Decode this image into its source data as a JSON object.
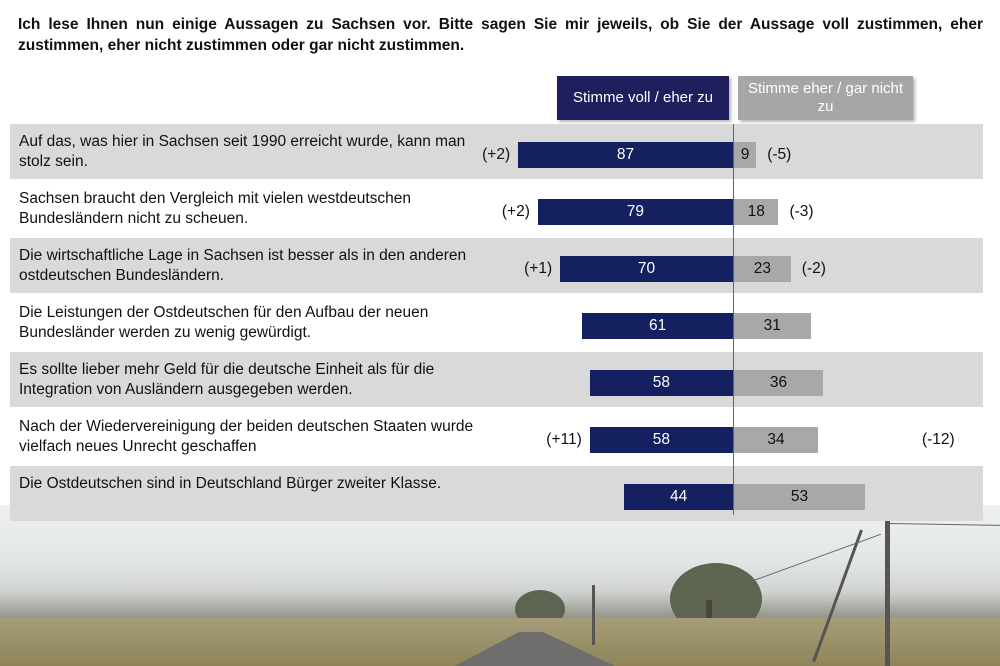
{
  "title": "Ich lese Ihnen nun einige Aussagen zu Sachsen vor. Bitte sagen Sie mir jeweils, ob Sie der Aussage voll zustimmen, eher zustimmen, eher nicht zustimmen oder gar nicht zustimmen.",
  "legend": {
    "agree": "Stimme voll / eher zu",
    "disagree": "Stimme eher / gar nicht zu"
  },
  "colors": {
    "agree": "#14205f",
    "disagree": "#a8a8a8",
    "row_alt": "#d9d9d9"
  },
  "rows": [
    {
      "statement": "Auf das, was hier in Sachsen seit 1990 erreicht wurde, kann man stolz sein.",
      "agree": "87",
      "disagree": "9",
      "agree_change": "(+2)",
      "disagree_change": "(-5)"
    },
    {
      "statement": "Sachsen braucht den Vergleich mit vielen westdeutschen Bundesländern nicht zu scheuen.",
      "agree": "79",
      "disagree": "18",
      "agree_change": "(+2)",
      "disagree_change": "(-3)"
    },
    {
      "statement": "Die wirtschaftliche Lage in Sachsen ist besser als in den anderen ostdeutschen Bundesländern.",
      "agree": "70",
      "disagree": "23",
      "agree_change": "(+1)",
      "disagree_change": "(-2)"
    },
    {
      "statement": "Die Leistungen der Ostdeutschen für den Aufbau der neuen Bundesländer werden zu wenig gewürdigt.",
      "agree": "61",
      "disagree": "31",
      "agree_change": "",
      "disagree_change": ""
    },
    {
      "statement": "Es sollte lieber mehr Geld für die deutsche Einheit als für die Integration von Ausländern ausgegeben werden.",
      "agree": "58",
      "disagree": "36",
      "agree_change": "",
      "disagree_change": ""
    },
    {
      "statement": "Nach der Wiedervereinigung der beiden deutschen Staaten wurde vielfach neues Unrecht geschaffen",
      "agree": "58",
      "disagree": "34",
      "agree_change": "(+11)",
      "disagree_change": "(-12)"
    },
    {
      "statement": "Die Ostdeutschen sind in Deutschland Bürger zweiter Klasse.",
      "agree": "44",
      "disagree": "53",
      "agree_change": "",
      "disagree_change": ""
    }
  ],
  "chart_data": {
    "type": "bar",
    "orientation": "horizontal-diverging",
    "title": "Ich lese Ihnen nun einige Aussagen zu Sachsen vor. Bitte sagen Sie mir jeweils, ob Sie der Aussage voll zustimmen, eher zustimmen, eher nicht zustimmen oder gar nicht zustimmen.",
    "categories": [
      "Auf das, was hier in Sachsen seit 1990 erreicht wurde, kann man stolz sein.",
      "Sachsen braucht den Vergleich mit vielen westdeutschen Bundesländern nicht zu scheuen.",
      "Die wirtschaftliche Lage in Sachsen ist besser als in den anderen ostdeutschen Bundesländern.",
      "Die Leistungen der Ostdeutschen für den Aufbau der neuen Bundesländer werden zu wenig gewürdigt.",
      "Es sollte lieber mehr Geld für die deutsche Einheit als für die Integration von Ausländern ausgegeben werden.",
      "Nach der Wiedervereinigung der beiden deutschen Staaten wurde vielfach neues Unrecht geschaffen",
      "Die Ostdeutschen sind in Deutschland Bürger zweiter Klasse."
    ],
    "series": [
      {
        "name": "Stimme voll / eher zu",
        "values": [
          87,
          79,
          70,
          61,
          58,
          58,
          44
        ],
        "changes": [
          "+2",
          "+2",
          "+1",
          null,
          null,
          "+11",
          null
        ]
      },
      {
        "name": "Stimme eher / gar nicht zu",
        "values": [
          9,
          18,
          23,
          31,
          36,
          34,
          53
        ],
        "changes": [
          "-5",
          "-3",
          "-2",
          null,
          null,
          "-12",
          null
        ]
      }
    ],
    "xlabel": "",
    "ylabel": "",
    "legend_position": "top",
    "grid": false
  }
}
